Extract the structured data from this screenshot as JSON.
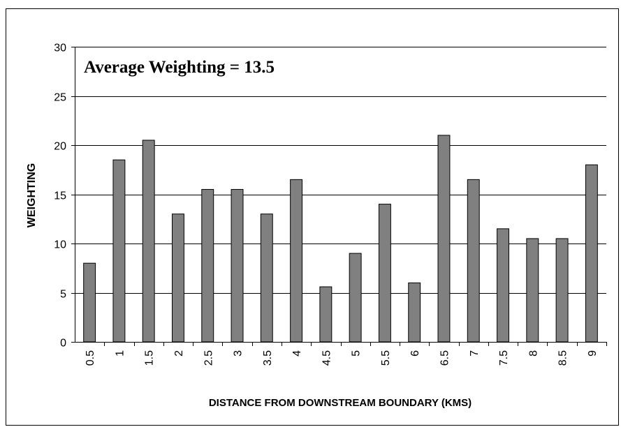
{
  "chart_data": {
    "type": "bar",
    "annotation": "Average Weighting = 13.5",
    "x_label": "DISTANCE FROM DOWNSTREAM BOUNDARY (KMS)",
    "y_label": "WEIGHTING",
    "categories": [
      "0.5",
      "1",
      "1.5",
      "2",
      "2.5",
      "3",
      "3.5",
      "4",
      "4.5",
      "5",
      "5.5",
      "6",
      "6.5",
      "7",
      "7.5",
      "8",
      "8.5",
      "9"
    ],
    "values": [
      8,
      18.5,
      20.5,
      13,
      15.5,
      15.5,
      13,
      16.5,
      5.6,
      9,
      14,
      6,
      21,
      16.5,
      11.5,
      10.5,
      10.5,
      18
    ],
    "color": "#808080",
    "ylim": [
      0,
      30
    ],
    "yticks": [
      0,
      5,
      10,
      15,
      20,
      25,
      30
    ],
    "grid": true
  }
}
